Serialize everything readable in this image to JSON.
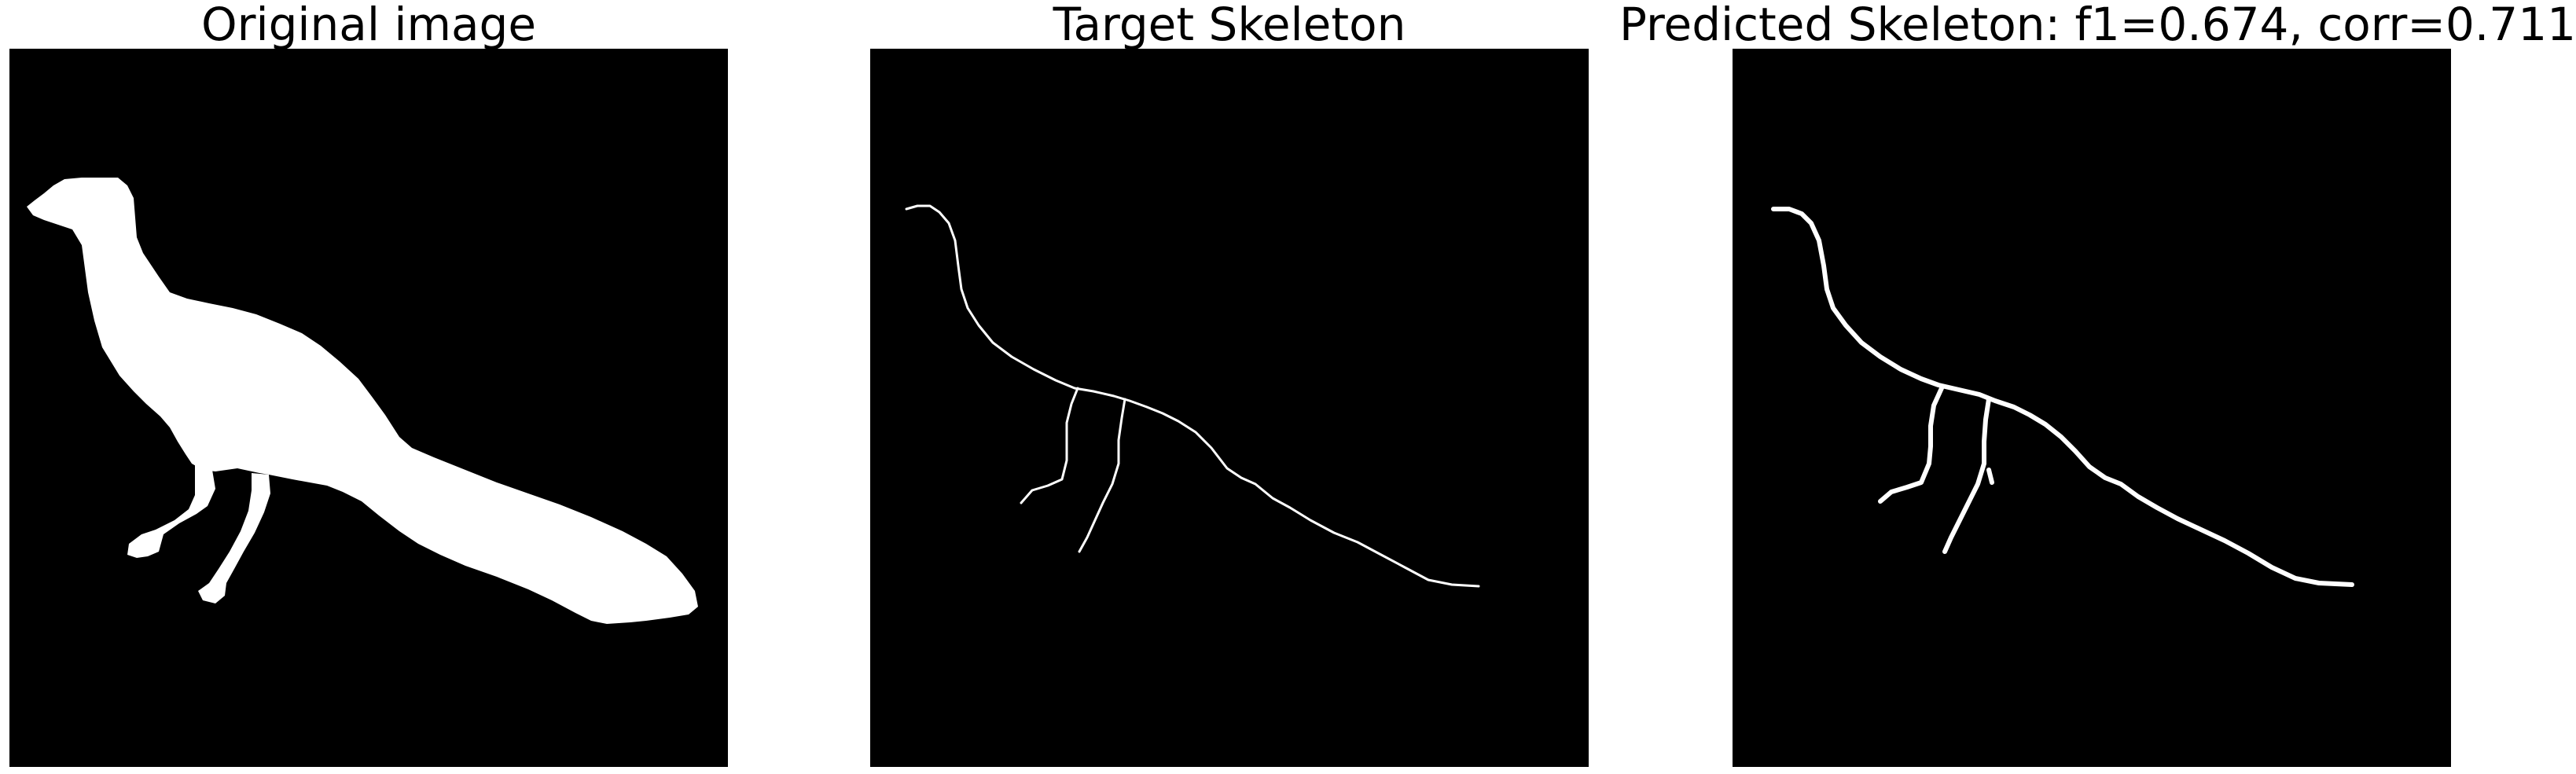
{
  "panels": [
    {
      "title": "Original image"
    },
    {
      "title": "Target Skeleton"
    },
    {
      "title": "Predicted Skeleton: f1=0.674, corr=0.711"
    }
  ],
  "colors": {
    "background": "#000000",
    "foreground": "#ffffff",
    "page": "#ffffff"
  }
}
